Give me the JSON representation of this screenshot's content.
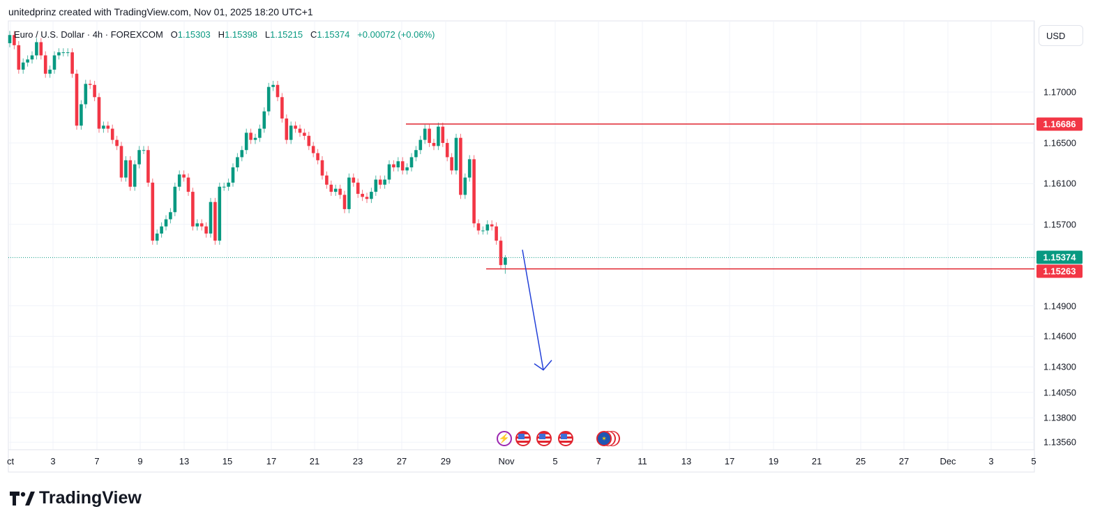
{
  "header": {
    "credit": "unitedprinz created with TradingView.com, Nov 01, 2025 18:20 UTC+1",
    "symbol": "Euro / U.S. Dollar · 4h · FOREXCOM",
    "o_label": "O",
    "o": "1.15303",
    "h_label": "H",
    "h": "1.15398",
    "l_label": "L",
    "l": "1.15215",
    "c_label": "C",
    "c": "1.15374",
    "change": "+0.00072 (+0.06%)"
  },
  "currency_button": "USD",
  "price_axis": [
    "1.17000",
    "1.16500",
    "1.16100",
    "1.15700",
    "1.14900",
    "1.14600",
    "1.14300",
    "1.14050",
    "1.13800",
    "1.13560"
  ],
  "price_tags": {
    "resistance": "1.16686",
    "last": "1.15374",
    "support": "1.15263"
  },
  "date_axis": [
    "ct",
    "3",
    "7",
    "9",
    "13",
    "15",
    "17",
    "21",
    "23",
    "27",
    "29",
    "Nov",
    "5",
    "7",
    "11",
    "13",
    "17",
    "19",
    "21",
    "25",
    "27",
    "Dec",
    "3",
    "5"
  ],
  "events": [
    {
      "icon": "lightning-icon"
    },
    {
      "icon": "us-flag-icon"
    },
    {
      "icon": "us-flag-icon"
    },
    {
      "icon": "us-flag-icon"
    },
    {
      "icon": "eu-flag-icon"
    }
  ],
  "colors": {
    "up": "#089981",
    "down": "#f23645",
    "line": "#e0242f",
    "arrow": "#2340d8",
    "grid": "#f0f3fa"
  },
  "logo_text": "TradingView",
  "chart_data": {
    "type": "candlestick",
    "title": "Euro / U.S. Dollar · 4h · FOREXCOM",
    "ylabel": "USD",
    "ylim": [
      1.134,
      1.1785
    ],
    "closes": [
      1.1756,
      1.1746,
      1.1722,
      1.1729,
      1.1732,
      1.1736,
      1.1749,
      1.1736,
      1.1718,
      1.1722,
      1.1736,
      1.1739,
      1.1739,
      1.1739,
      1.1718,
      1.1667,
      1.1688,
      1.1708,
      1.1707,
      1.1695,
      1.1664,
      1.1667,
      1.1664,
      1.1653,
      1.1647,
      1.1616,
      1.1633,
      1.1607,
      1.1629,
      1.1643,
      1.1643,
      1.1611,
      1.1554,
      1.1561,
      1.1568,
      1.1575,
      1.1582,
      1.1607,
      1.1619,
      1.1616,
      1.1602,
      1.1568,
      1.1571,
      1.1568,
      1.1561,
      1.1592,
      1.1554,
      1.1607,
      1.1607,
      1.1611,
      1.1626,
      1.1636,
      1.1643,
      1.166,
      1.1653,
      1.1655,
      1.1664,
      1.1681,
      1.1705,
      1.1707,
      1.1695,
      1.1674,
      1.1653,
      1.1667,
      1.1664,
      1.166,
      1.1657,
      1.1647,
      1.164,
      1.1633,
      1.1618,
      1.1609,
      1.1602,
      1.1605,
      1.1599,
      1.1585,
      1.1616,
      1.1611,
      1.16,
      1.1597,
      1.1595,
      1.1602,
      1.1614,
      1.1609,
      1.1614,
      1.1629,
      1.1626,
      1.1632,
      1.1623,
      1.1626,
      1.1636,
      1.1643,
      1.1653,
      1.1664,
      1.165,
      1.1647,
      1.1666,
      1.165,
      1.1636,
      1.1623,
      1.1655,
      1.1599,
      1.1616,
      1.1634,
      1.1571,
      1.1564,
      1.1564,
      1.157,
      1.1568,
      1.1554,
      1.153,
      1.15374
    ],
    "last_candle": {
      "open": 1.15303,
      "high": 1.15398,
      "low": 1.15215,
      "close": 1.15374
    },
    "horizontal_lines": [
      1.16686,
      1.15263
    ],
    "last_price_line": 1.15374,
    "arrow": {
      "from_price": 1.1545,
      "to_price": 1.1427,
      "direction": "down"
    }
  }
}
